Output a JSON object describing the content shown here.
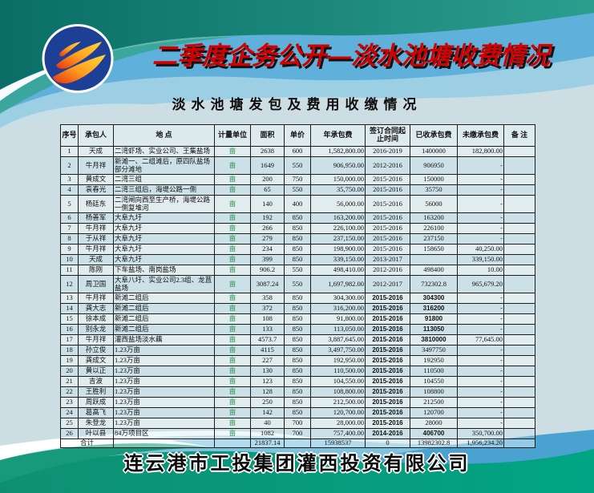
{
  "page": {
    "title": "二季度企务公开—淡水池塘收费情况",
    "subtitle": "淡水池塘发包及费用收缴情况",
    "footer": "连云港市工投集团灌西投资有限公司",
    "colors": {
      "title_red": "#d40000",
      "unit_green": "#1f8f46",
      "teal_band": "#0a6e66",
      "bottom_green": "#00a584",
      "wave_blue": "#5fb0da",
      "logo_blue": "#1e3f96"
    }
  },
  "logo": {
    "label": "company-logo-flame-on-blue-circle"
  },
  "table": {
    "headers": [
      "序号",
      "承包人",
      "地  点",
      "计量单位",
      "面积",
      "单价",
      "年承包费",
      "签订合同起止时间",
      "已收承包费",
      "未缴承包费",
      "备  注"
    ],
    "rows": [
      {
        "no": "1",
        "name": "天成",
        "location": "二湾虾场、实业公司、王集盐场",
        "unit": "亩",
        "area": "2638",
        "price": "600",
        "annual": "1,582,800.00",
        "period": "2016-2019",
        "paid": "1400000",
        "unpaid": "182,800.00",
        "note": ""
      },
      {
        "no": "2",
        "name": "牛月祥",
        "location": "新滩一、二组滩后，原四队盐场部分滩地",
        "unit": "亩",
        "area": "1649",
        "price": "550",
        "annual": "906,950.00",
        "period": "2012-2016",
        "paid": "906950",
        "unpaid": "-",
        "note": "",
        "tall": true
      },
      {
        "no": "3",
        "name": "黄成文",
        "location": "二湾三组",
        "unit": "亩",
        "area": "200",
        "price": "750",
        "annual": "150,000.00",
        "period": "2015-2016",
        "paid": "150000",
        "unpaid": "-",
        "note": ""
      },
      {
        "no": "4",
        "name": "袁春光",
        "location": "二湾三组后，海堤公路一侧",
        "unit": "亩",
        "area": "65",
        "price": "550",
        "annual": "35,750.00",
        "period": "2015-2016",
        "paid": "35750",
        "unpaid": "-",
        "note": ""
      },
      {
        "no": "5",
        "name": "杨廷东",
        "location": "二湾闸向西至生产桥，海堤公路一侧复堆河",
        "unit": "亩",
        "area": "140",
        "price": "400",
        "annual": "56,000.00",
        "period": "2015-2016",
        "paid": "56000",
        "unpaid": "-",
        "note": "",
        "tall": true
      },
      {
        "no": "6",
        "name": "杨善军",
        "location": "大阜九圩",
        "unit": "亩",
        "area": "192",
        "price": "850",
        "annual": "163,200.00",
        "period": "2015-2016",
        "paid": "163200",
        "unpaid": "-",
        "note": ""
      },
      {
        "no": "7",
        "name": "牛月祥",
        "location": "大阜九圩",
        "unit": "亩",
        "area": "266",
        "price": "850",
        "annual": "226,100.00",
        "period": "2015-2016",
        "paid": "226100",
        "unpaid": "-",
        "note": ""
      },
      {
        "no": "8",
        "name": "于从祥",
        "location": "大阜九圩",
        "unit": "亩",
        "area": "279",
        "price": "850",
        "annual": "237,150.00",
        "period": "2015-2016",
        "paid": "237150",
        "unpaid": "-",
        "note": ""
      },
      {
        "no": "9",
        "name": "牛月祥",
        "location": "大阜九圩",
        "unit": "亩",
        "area": "234",
        "price": "850",
        "annual": "198,900.00",
        "period": "2015-2016",
        "paid": "158650",
        "unpaid": "40,250.00",
        "note": ""
      },
      {
        "no": "10",
        "name": "天成",
        "location": "大阜九圩",
        "unit": "亩",
        "area": "399",
        "price": "850",
        "annual": "339,150.00",
        "period": "2013-2017",
        "paid": "",
        "unpaid": "339,150.00",
        "note": ""
      },
      {
        "no": "11",
        "name": "陈刚",
        "location": "下车盐场、南岗盐场",
        "unit": "亩",
        "area": "906.2",
        "price": "550",
        "annual": "498,410.00",
        "period": "2012-2016",
        "paid": "498400",
        "unpaid": "10.00",
        "note": ""
      },
      {
        "no": "12",
        "name": "周卫国",
        "location": "大阜八圩、实业公司2.3组、龙苴盐场",
        "unit": "亩",
        "area": "3087.24",
        "price": "550",
        "annual": "1,697,982.00",
        "period": "2012-2017",
        "paid": "732302.8",
        "unpaid": "965,679.20",
        "note": "",
        "tall": true
      },
      {
        "no": "13",
        "name": "牛月祥",
        "location": "新滩二组后",
        "unit": "亩",
        "area": "358",
        "price": "850",
        "annual": "304,300.00",
        "period": "2015-2016",
        "paid": "304300",
        "unpaid": "-",
        "note": "",
        "alt": true,
        "paid_alt": true
      },
      {
        "no": "14",
        "name": "龚大志",
        "location": "新滩二组后",
        "unit": "亩",
        "area": "372",
        "price": "850",
        "annual": "316,200.00",
        "period": "2015-2016",
        "paid": "316200",
        "unpaid": "-",
        "note": "",
        "alt": true,
        "paid_alt": true
      },
      {
        "no": "15",
        "name": "徐本成",
        "location": "新滩二组后",
        "unit": "亩",
        "area": "108",
        "price": "850",
        "annual": "91,800.00",
        "period": "2015-2016",
        "paid": "91800",
        "unpaid": "-",
        "note": "",
        "alt": true,
        "paid_alt": true
      },
      {
        "no": "16",
        "name": "别永龙",
        "location": "新滩二组后",
        "unit": "亩",
        "area": "133",
        "price": "850",
        "annual": "113,050.00",
        "period": "2015-2016",
        "paid": "113050",
        "unpaid": "-",
        "note": "",
        "alt": true,
        "paid_alt": true
      },
      {
        "no": "17",
        "name": "牛月祥",
        "location": "灌西盐场淡水藕",
        "unit": "亩",
        "area": "4573.7",
        "price": "850",
        "annual": "3,887,645.00",
        "period": "2015-2016",
        "paid": "3810000",
        "unpaid": "77,645.00",
        "note": "",
        "alt": true,
        "paid_alt": true
      },
      {
        "no": "18",
        "name": "孙立俊",
        "location": "1.23万亩",
        "unit": "亩",
        "area": "4115",
        "price": "850",
        "annual": "3,497,750.00",
        "period": "2015-2016",
        "paid": "3497750",
        "unpaid": "-",
        "note": "",
        "alt": true
      },
      {
        "no": "19",
        "name": "龚成文",
        "location": "1.23万亩",
        "unit": "亩",
        "area": "227",
        "price": "850",
        "annual": "192,950.00",
        "period": "2015-2016",
        "paid": "192950",
        "unpaid": "-",
        "note": "",
        "alt": true
      },
      {
        "no": "20",
        "name": "黄以正",
        "location": "1.23万亩",
        "unit": "亩",
        "area": "130",
        "price": "850",
        "annual": "110,500.00",
        "period": "2015-2016",
        "paid": "110500",
        "unpaid": "-",
        "note": "",
        "alt": true
      },
      {
        "no": "21",
        "name": "吉波",
        "location": "1.23万亩",
        "unit": "亩",
        "area": "123",
        "price": "850",
        "annual": "104,550.00",
        "period": "2015-2016",
        "paid": "104550",
        "unpaid": "-",
        "note": "",
        "alt": true
      },
      {
        "no": "22",
        "name": "王胜利",
        "location": "1.23万亩",
        "unit": "亩",
        "area": "128",
        "price": "850",
        "annual": "108,800.00",
        "period": "2015-2016",
        "paid": "108800",
        "unpaid": "-",
        "note": "",
        "alt": true
      },
      {
        "no": "23",
        "name": "周跃成",
        "location": "1.23万亩",
        "unit": "亩",
        "area": "250",
        "price": "850",
        "annual": "212,500.00",
        "period": "2015-2016",
        "paid": "212500",
        "unpaid": "-",
        "note": "",
        "alt": true
      },
      {
        "no": "24",
        "name": "葛高飞",
        "location": "1.23万亩",
        "unit": "亩",
        "area": "142",
        "price": "850",
        "annual": "120,700.00",
        "period": "2015-2016",
        "paid": "120700",
        "unpaid": "-",
        "note": "",
        "alt": true
      },
      {
        "no": "25",
        "name": "朱登龙",
        "location": "1.23万亩",
        "unit": "亩",
        "area": "40",
        "price": "700",
        "annual": "28,000.00",
        "period": "2015-2016",
        "paid": "28000",
        "unpaid": "-",
        "note": "",
        "alt": true
      },
      {
        "no": "26",
        "name": "叶以县",
        "location": "84万项目区",
        "unit": "亩",
        "area": "1082",
        "price": "700",
        "annual": "757,400.00",
        "period": "2014-2016",
        "paid": "406700",
        "unpaid": "350,700.00",
        "note": "",
        "alt": true,
        "paid_alt": true
      }
    ],
    "total": {
      "label": "合计",
      "location": "",
      "unit": "",
      "area": "21837.14",
      "price": "",
      "annual": "15938537",
      "period": "0",
      "paid": "13982302.8",
      "unpaid": "1,956,234.20",
      "note": ""
    }
  }
}
